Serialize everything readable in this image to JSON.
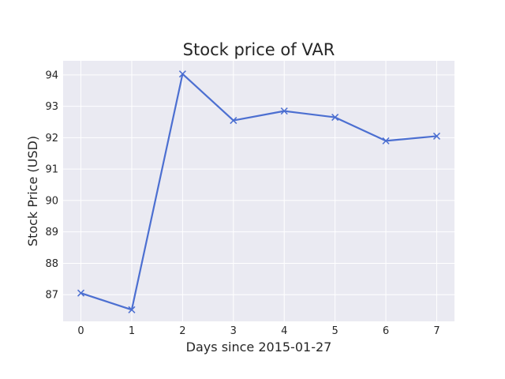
{
  "chart_data": {
    "type": "line",
    "title": "Stock price of VAR",
    "xlabel": "Days since 2015-01-27",
    "ylabel": "Stock Price (USD)",
    "x": [
      0,
      1,
      2,
      3,
      4,
      5,
      6,
      7
    ],
    "xticks": [
      "0",
      "1",
      "2",
      "3",
      "4",
      "5",
      "6",
      "7"
    ],
    "yticks": [
      "87",
      "88",
      "89",
      "90",
      "91",
      "92",
      "93",
      "94"
    ],
    "xlim": [
      -0.35,
      7.35
    ],
    "ylim": [
      86.15,
      94.45
    ],
    "grid": true,
    "series": [
      {
        "values": [
          87.05,
          86.52,
          94.03,
          92.55,
          92.85,
          92.65,
          91.9,
          92.05
        ],
        "color": "#4c6fd1",
        "marker": "x"
      }
    ],
    "colors": {
      "plot_background": "#eaeaf2",
      "grid": "#ffffff",
      "text": "#262626"
    }
  }
}
